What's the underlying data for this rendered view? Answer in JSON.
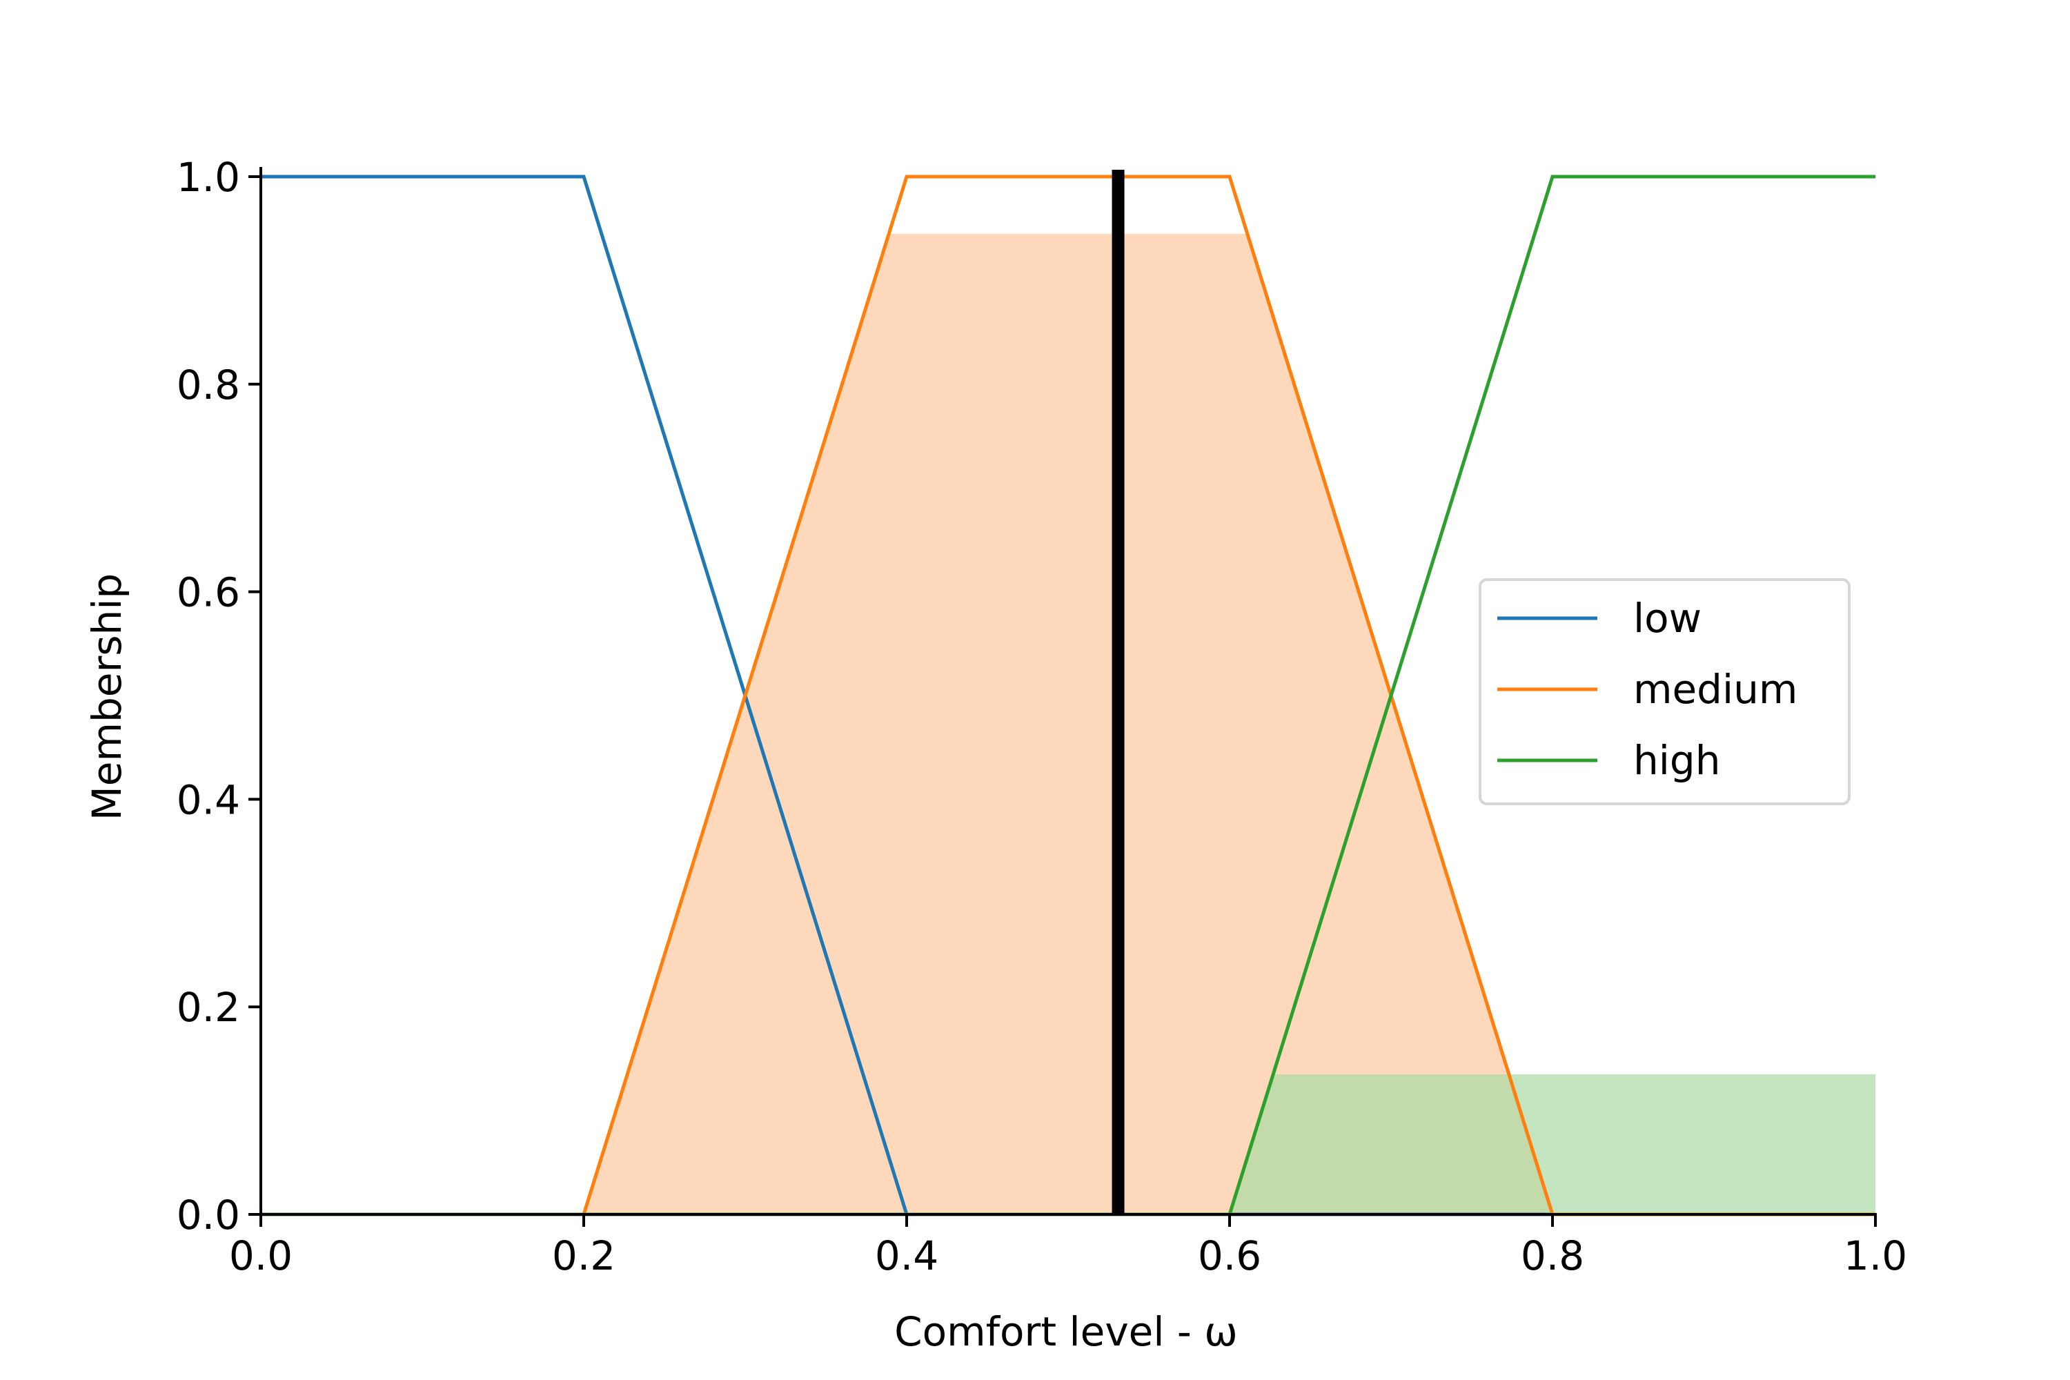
{
  "chart_data": {
    "type": "line",
    "xlabel": "Comfort level - ω",
    "ylabel": "Membership",
    "xlim": [
      0.0,
      1.0
    ],
    "ylim": [
      0.0,
      1.0
    ],
    "x_ticks": [
      "0.0",
      "0.2",
      "0.4",
      "0.6",
      "0.8",
      "1.0"
    ],
    "y_ticks": [
      "0.0",
      "0.2",
      "0.4",
      "0.6",
      "0.8",
      "1.0"
    ],
    "grid": false,
    "legend_position": "center-right",
    "series": [
      {
        "name": "low",
        "color": "#1f77b4",
        "x": [
          0.0,
          0.2,
          0.4,
          1.0
        ],
        "y": [
          1.0,
          1.0,
          0.0,
          0.0
        ]
      },
      {
        "name": "medium",
        "color": "#ff7f0e",
        "x": [
          0.0,
          0.2,
          0.4,
          0.6,
          0.8,
          1.0
        ],
        "y": [
          0.0,
          0.0,
          1.0,
          1.0,
          0.0,
          0.0
        ]
      },
      {
        "name": "high",
        "color": "#2ca02c",
        "x": [
          0.0,
          0.6,
          0.8,
          1.0
        ],
        "y": [
          0.0,
          0.0,
          1.0,
          1.0
        ]
      }
    ],
    "activations": [
      {
        "series": "medium",
        "level": 0.945,
        "fill_color": "#fdc89d"
      },
      {
        "series": "high",
        "level": 0.135,
        "fill_color": "#a9dba5"
      }
    ],
    "output_value": 0.531,
    "output_line_color": "#000000"
  }
}
